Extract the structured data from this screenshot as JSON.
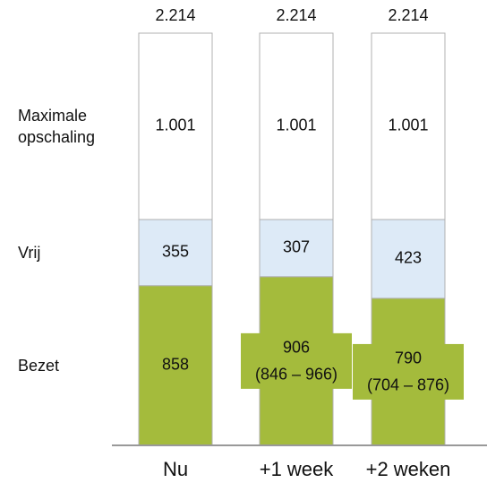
{
  "chart_data": {
    "type": "stacked-bar",
    "categories": [
      "Nu",
      "+1 week",
      "+2 weken"
    ],
    "series": [
      {
        "name": "Bezet",
        "color": "#a4bb3c",
        "values": [
          858,
          906,
          790
        ],
        "ranges": [
          null,
          [
            846,
            966
          ],
          [
            704,
            876
          ]
        ],
        "range_labels": [
          null,
          "(846 – 966)",
          "(704 – 876)"
        ]
      },
      {
        "name": "Vrij",
        "color": "#ddeaf7",
        "values": [
          355,
          307,
          423
        ]
      },
      {
        "name": "Maximale opschaling",
        "color": "#ffffff",
        "values": [
          1001,
          1001,
          1001
        ],
        "value_labels": [
          "1.001",
          "1.001",
          "1.001"
        ]
      }
    ],
    "totals": {
      "values": [
        2214,
        2214,
        2214
      ],
      "value_labels": [
        "2.214",
        "2.214",
        "2.214"
      ]
    }
  }
}
